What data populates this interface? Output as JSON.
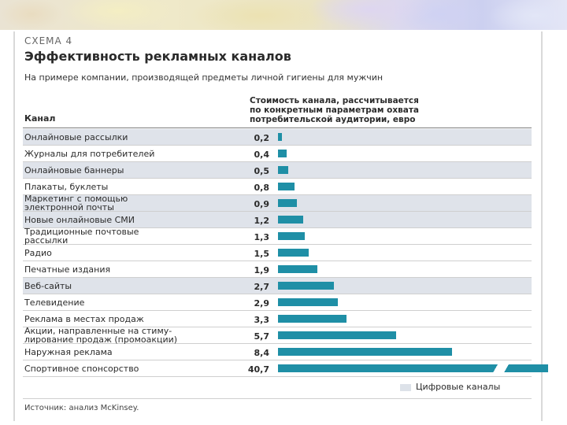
{
  "chart_data": {
    "type": "bar",
    "orientation": "horizontal",
    "label": "Схема 4",
    "title": "Эффективность рекламных каналов",
    "subtitle": "На примере компании, производящей предметы личной гигиены для мужчин",
    "category_header": "Канал",
    "value_header": "Стоимость канала, рассчитывается\nпо конкретным параметрам охвата\nпотребительской аудитории, евро",
    "categories": [
      "Онлайновые рассылки",
      "Журналы для потребителей",
      "Онлайновые баннеры",
      "Плакаты, буклеты",
      "Маркетинг с помощью\nэлектронной почты",
      "Новые онлайновые СМИ",
      "Традиционные почтовые\nрассылки",
      "Радио",
      "Печатные издания",
      "Веб-сайты",
      "Телевидение",
      "Реклама в местах продаж",
      "Акции, направленные на стиму-\nлирование продаж (промоакции)",
      "Наружная реклама",
      "Спортивное спонсорство"
    ],
    "values": [
      0.2,
      0.4,
      0.5,
      0.8,
      0.9,
      1.2,
      1.3,
      1.5,
      1.9,
      2.7,
      2.9,
      3.3,
      5.7,
      8.4,
      40.7
    ],
    "value_labels": [
      "0,2",
      "0,4",
      "0,5",
      "0,8",
      "0,9",
      "1,2",
      "1,3",
      "1,5",
      "1,9",
      "2,7",
      "2,9",
      "3,3",
      "5,7",
      "8,4",
      "40,7"
    ],
    "digital": [
      true,
      false,
      true,
      false,
      true,
      true,
      false,
      false,
      false,
      true,
      false,
      false,
      false,
      false,
      false
    ],
    "axis_break_after": 8.4,
    "legend": "Цифровые каналы",
    "source": "Источник: анализ McKinsey."
  },
  "colors": {
    "bar": "#1f8fa6",
    "digital_row": "#dfe3ea",
    "text": "#2b2b2b"
  }
}
